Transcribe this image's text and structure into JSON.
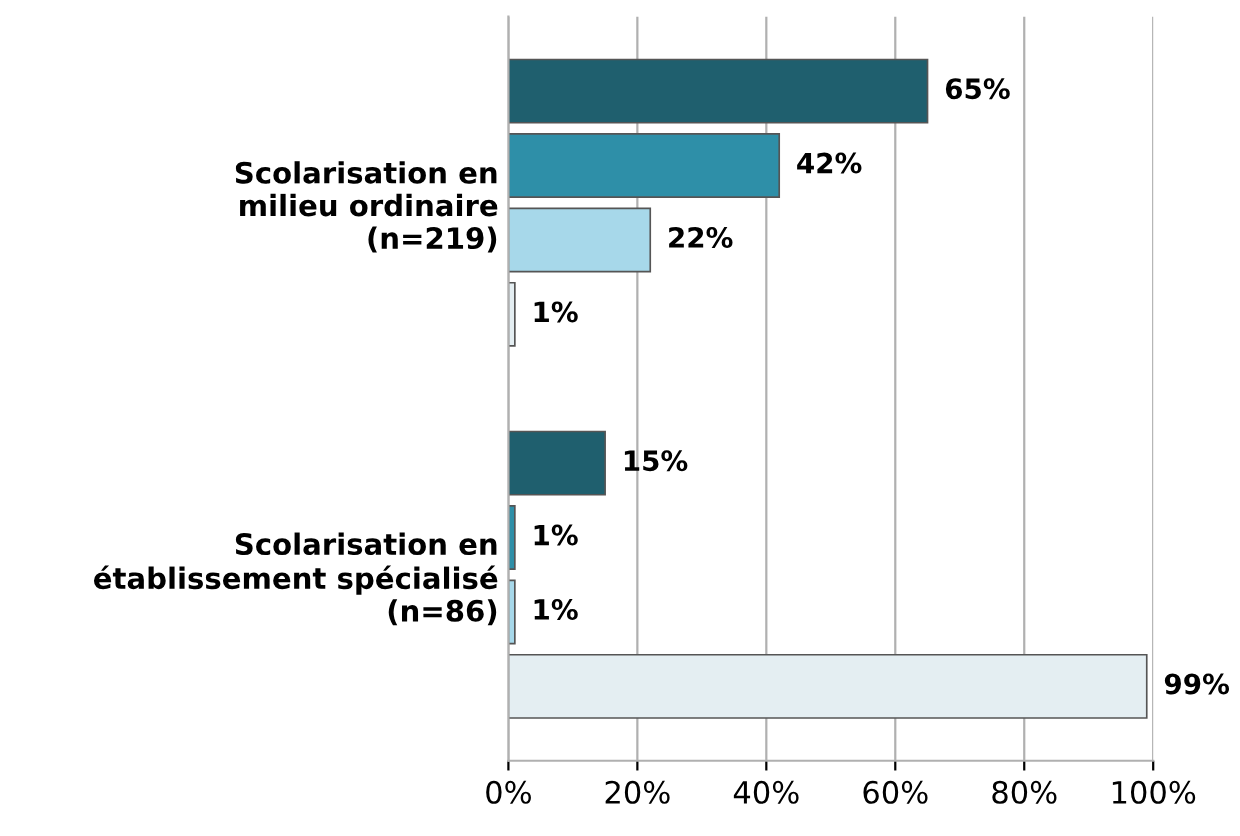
{
  "chart_data": {
    "type": "bar",
    "orientation": "horizontal",
    "categories": [
      "Scolarisation en\nmilieu ordinaire\n(n=219)",
      "Scolarisation en\nétablissement spécialisé\n(n=86)"
    ],
    "series": [
      {
        "color": "#1f5f6e",
        "values": [
          65,
          15
        ],
        "value_labels": [
          "65%",
          "15%"
        ]
      },
      {
        "color": "#2e8fa8",
        "values": [
          42,
          1
        ],
        "value_labels": [
          "42%",
          "1%"
        ]
      },
      {
        "color": "#a7d8ea",
        "values": [
          22,
          1
        ],
        "value_labels": [
          "22%",
          "1%"
        ]
      },
      {
        "color": "#e4eef2",
        "values": [
          1,
          99
        ],
        "value_labels": [
          "1%",
          "99%"
        ]
      }
    ],
    "xlim": [
      0,
      100
    ],
    "xticks": [
      {
        "value": 0,
        "label": "0%"
      },
      {
        "value": 20,
        "label": "20%"
      },
      {
        "value": 40,
        "label": "40%"
      },
      {
        "value": 60,
        "label": "60%"
      },
      {
        "value": 80,
        "label": "80%"
      },
      {
        "value": 100,
        "label": "100%"
      }
    ],
    "grid": "x",
    "legend": false
  }
}
